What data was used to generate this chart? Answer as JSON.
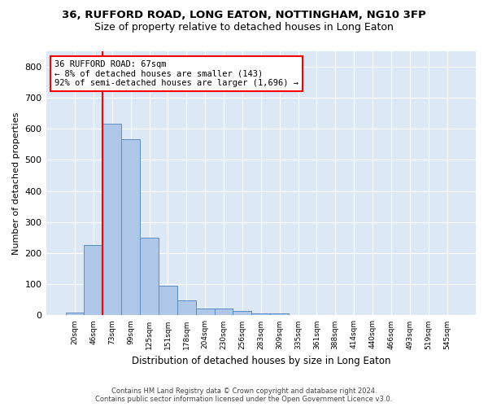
{
  "title1": "36, RUFFORD ROAD, LONG EATON, NOTTINGHAM, NG10 3FP",
  "title2": "Size of property relative to detached houses in Long Eaton",
  "xlabel": "Distribution of detached houses by size in Long Eaton",
  "ylabel": "Number of detached properties",
  "bar_values": [
    10,
    225,
    617,
    567,
    250,
    95,
    48,
    22,
    22,
    13,
    6,
    6,
    0,
    0,
    0,
    0,
    0,
    0,
    0,
    0,
    0
  ],
  "bar_labels": [
    "20sqm",
    "46sqm",
    "73sqm",
    "99sqm",
    "125sqm",
    "151sqm",
    "178sqm",
    "204sqm",
    "230sqm",
    "256sqm",
    "283sqm",
    "309sqm",
    "335sqm",
    "361sqm",
    "388sqm",
    "414sqm",
    "440sqm",
    "466sqm",
    "493sqm",
    "519sqm",
    "545sqm"
  ],
  "bar_color": "#aec6e8",
  "bar_edge_color": "#5a8fc2",
  "ylim": [
    0,
    850
  ],
  "yticks": [
    0,
    100,
    200,
    300,
    400,
    500,
    600,
    700,
    800
  ],
  "property_label": "36 RUFFORD ROAD: 67sqm",
  "annotation_line1": "← 8% of detached houses are smaller (143)",
  "annotation_line2": "92% of semi-detached houses are larger (1,696) →",
  "vline_bar_index": 2,
  "footer1": "Contains HM Land Registry data © Crown copyright and database right 2024.",
  "footer2": "Contains public sector information licensed under the Open Government Licence v3.0.",
  "bg_color": "#dce8f5"
}
